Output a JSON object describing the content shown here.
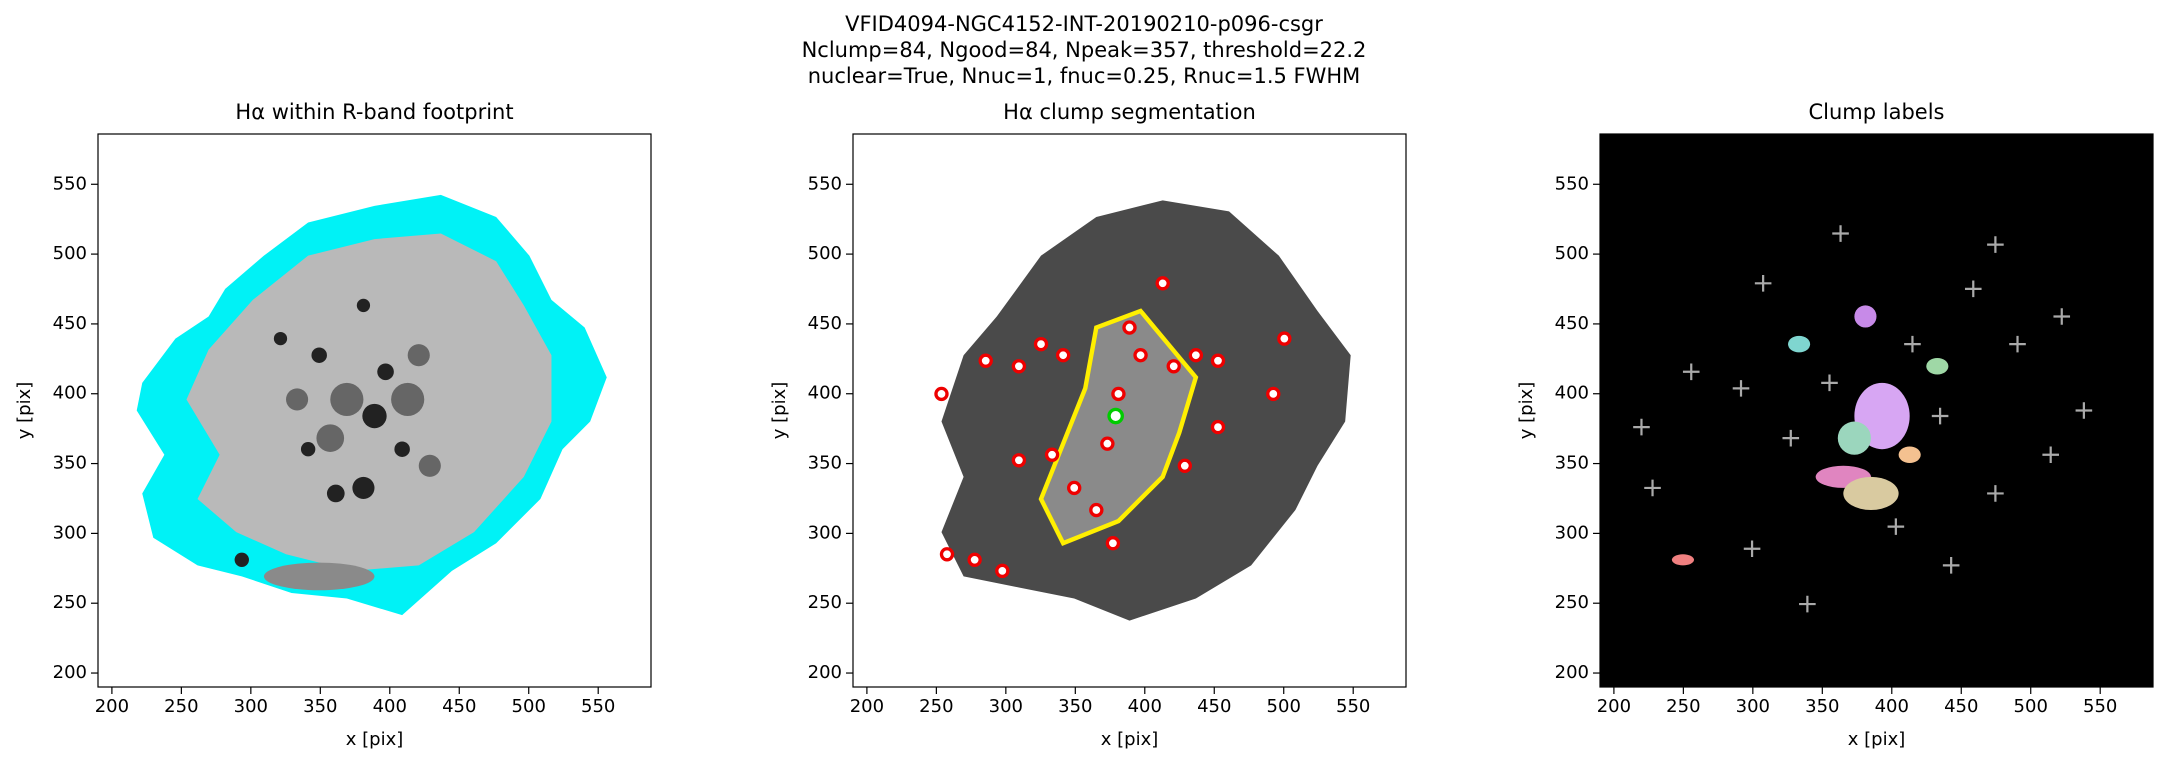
{
  "suptitle": [
    "VFID4094-NGC4152-INT-20190210-p096-csgr",
    "Nclump=84, Ngood=84, Npeak=357, threshold=22.2",
    "nuclear=True, Nnuc=1, fnuc=0.25, Rnuc=1.5 FWHM"
  ],
  "chart_data": [
    {
      "type": "image",
      "title": "Hα within R-band footprint",
      "xlabel": "x [pix]",
      "ylabel": "y [pix]",
      "xlim": [
        190,
        588
      ],
      "ylim": [
        190,
        586
      ],
      "xticks": [
        200,
        250,
        300,
        350,
        400,
        450,
        500,
        550
      ],
      "yticks": [
        200,
        250,
        300,
        350,
        400,
        450,
        500,
        550
      ]
    },
    {
      "type": "image",
      "title": "Hα clump segmentation",
      "xlabel": "x [pix]",
      "ylabel": "y [pix]",
      "xlim": [
        190,
        588
      ],
      "ylim": [
        190,
        586
      ],
      "xticks": [
        200,
        250,
        300,
        350,
        400,
        450,
        500,
        550
      ],
      "yticks": [
        200,
        250,
        300,
        350,
        400,
        450,
        500,
        550
      ]
    },
    {
      "type": "image",
      "title": "Clump labels",
      "xlabel": "x [pix]",
      "ylabel": "y [pix]",
      "xlim": [
        190,
        588
      ],
      "ylim": [
        190,
        586
      ],
      "xticks": [
        200,
        250,
        300,
        350,
        400,
        450,
        500,
        550
      ],
      "yticks": [
        200,
        250,
        300,
        350,
        400,
        450,
        500,
        550
      ]
    }
  ]
}
